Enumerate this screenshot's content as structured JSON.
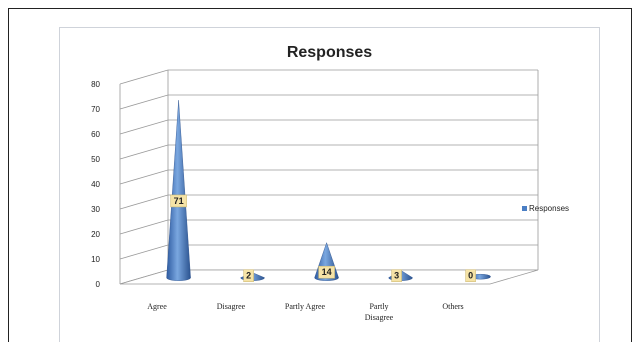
{
  "chart_data": {
    "type": "bar",
    "title": "Responses",
    "categories": [
      "Agree",
      "Disagree",
      "Partly Agree",
      "Partly Disagree",
      "Others"
    ],
    "category_lines": [
      [
        "Agree"
      ],
      [
        "Disagree"
      ],
      [
        "Partly Agree"
      ],
      [
        "Partly",
        "Disagree"
      ],
      [
        "Others"
      ]
    ],
    "series": [
      {
        "name": "Responses",
        "values": [
          71,
          2,
          14,
          3,
          0
        ]
      }
    ],
    "data_labels": [
      "71",
      "2",
      "14",
      "3",
      "0"
    ],
    "ylim": [
      0,
      80
    ],
    "yticks": [
      "0",
      "10",
      "20",
      "30",
      "40",
      "50",
      "60",
      "70",
      "80"
    ],
    "grid": true,
    "legend_position": "right",
    "style": "3d-cone",
    "colors": {
      "series": "#4a7ec4",
      "label_bg": "#f5e3a6"
    }
  }
}
